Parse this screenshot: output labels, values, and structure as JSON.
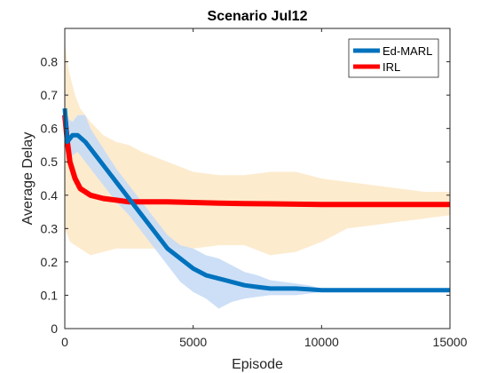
{
  "chart_data": {
    "type": "line",
    "title": "Scenario Jul12",
    "xlabel": "Episode",
    "ylabel": "Average Delay",
    "xlim": [
      0,
      15000
    ],
    "ylim": [
      0,
      0.9
    ],
    "xticks": [
      0,
      5000,
      10000,
      15000
    ],
    "xtick_labels": [
      "0",
      "5000",
      "10000",
      "15000"
    ],
    "yticks": [
      0,
      0.1,
      0.2,
      0.3,
      0.4,
      0.5,
      0.6,
      0.7,
      0.8
    ],
    "ytick_labels": [
      "0",
      "0.1",
      "0.2",
      "0.3",
      "0.4",
      "0.5",
      "0.6",
      "0.7",
      "0.8"
    ],
    "grid": false,
    "legend": "top-right",
    "series": [
      {
        "name": "Ed-MARL",
        "color": "#0072BD",
        "band_color": "#c6dcf6",
        "x": [
          0,
          100,
          300,
          500,
          800,
          1000,
          1500,
          2000,
          2500,
          3000,
          3500,
          4000,
          4500,
          5000,
          5500,
          6000,
          6500,
          7000,
          7500,
          8000,
          8500,
          9000,
          9500,
          10000,
          10500,
          11000,
          12000,
          13000,
          14000,
          15000
        ],
        "y": [
          0.66,
          0.56,
          0.58,
          0.58,
          0.56,
          0.54,
          0.49,
          0.44,
          0.39,
          0.34,
          0.29,
          0.24,
          0.21,
          0.18,
          0.16,
          0.15,
          0.14,
          0.13,
          0.125,
          0.12,
          0.12,
          0.12,
          0.118,
          0.115,
          0.115,
          0.115,
          0.115,
          0.115,
          0.115,
          0.115
        ],
        "upper": [
          0.66,
          0.63,
          0.62,
          0.64,
          0.64,
          0.6,
          0.54,
          0.48,
          0.43,
          0.38,
          0.33,
          0.28,
          0.25,
          0.24,
          0.22,
          0.21,
          0.19,
          0.17,
          0.16,
          0.145,
          0.14,
          0.135,
          0.13,
          0.12,
          0.12,
          0.12,
          0.12,
          0.12,
          0.12,
          0.12
        ],
        "lower": [
          0.62,
          0.5,
          0.52,
          0.53,
          0.5,
          0.48,
          0.43,
          0.38,
          0.34,
          0.29,
          0.24,
          0.19,
          0.14,
          0.11,
          0.09,
          0.06,
          0.08,
          0.09,
          0.095,
          0.1,
          0.1,
          0.1,
          0.105,
          0.11,
          0.11,
          0.11,
          0.11,
          0.11,
          0.11,
          0.11
        ]
      },
      {
        "name": "IRL",
        "color": "#FF0000",
        "band_color": "#fde9c9",
        "x": [
          0,
          100,
          200,
          400,
          600,
          800,
          1000,
          1500,
          2000,
          2500,
          3000,
          4000,
          5000,
          6000,
          7000,
          8000,
          9000,
          10000,
          11000,
          12000,
          13000,
          14000,
          15000
        ],
        "y": [
          0.64,
          0.56,
          0.5,
          0.45,
          0.42,
          0.41,
          0.4,
          0.39,
          0.385,
          0.38,
          0.38,
          0.38,
          0.378,
          0.376,
          0.375,
          0.374,
          0.373,
          0.372,
          0.372,
          0.372,
          0.372,
          0.372,
          0.372
        ],
        "upper": [
          0.86,
          0.8,
          0.76,
          0.7,
          0.66,
          0.64,
          0.62,
          0.58,
          0.56,
          0.55,
          0.53,
          0.5,
          0.47,
          0.46,
          0.46,
          0.47,
          0.47,
          0.45,
          0.44,
          0.43,
          0.42,
          0.41,
          0.41
        ],
        "lower": [
          0.3,
          0.28,
          0.26,
          0.25,
          0.24,
          0.23,
          0.22,
          0.23,
          0.24,
          0.24,
          0.24,
          0.24,
          0.24,
          0.25,
          0.25,
          0.22,
          0.23,
          0.26,
          0.3,
          0.31,
          0.32,
          0.33,
          0.34
        ]
      }
    ]
  }
}
